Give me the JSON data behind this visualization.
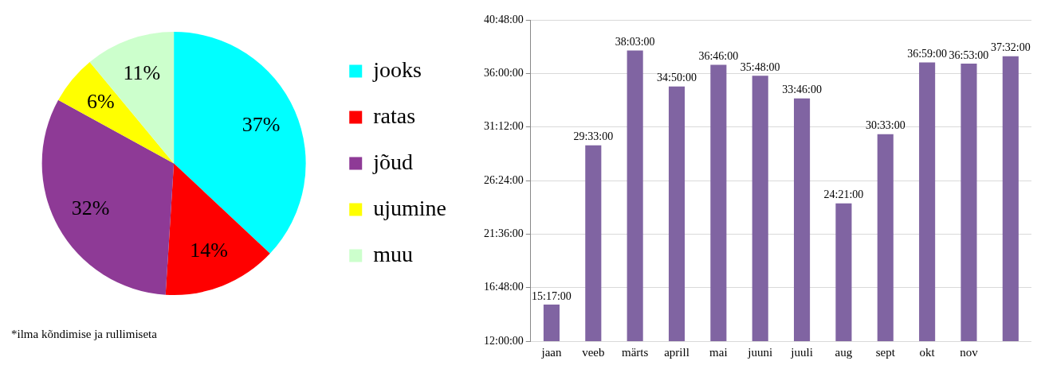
{
  "chart_data": [
    {
      "type": "pie",
      "categories": [
        "jooks",
        "ratas",
        "jõud",
        "ujumine",
        "muu"
      ],
      "values": [
        37,
        14,
        32,
        6,
        11
      ],
      "colors": [
        "#00ffff",
        "#ff0000",
        "#8e3a96",
        "#ffff00",
        "#ccffcc"
      ],
      "value_labels": [
        "37%",
        "14%",
        "32%",
        "6%",
        "11%"
      ],
      "legend": "right",
      "annotations": [
        "*ilma kõndimise ja rullimiseta"
      ]
    },
    {
      "type": "bar",
      "categories": [
        "jaan",
        "veeb",
        "märts",
        "aprill",
        "mai",
        "juuni",
        "juuli",
        "aug",
        "sept",
        "okt",
        "nov",
        null
      ],
      "values": [
        15.2833,
        29.55,
        38.05,
        34.8333,
        36.7667,
        35.8,
        33.7667,
        24.35,
        30.55,
        36.9833,
        36.8833,
        37.5333
      ],
      "value_labels": [
        "15:17:00",
        "29:33:00",
        "38:03:00",
        "34:50:00",
        "36:46:00",
        "35:48:00",
        "33:46:00",
        "24:21:00",
        "30:33:00",
        "36:59:00",
        "36:53:00",
        "37:32:00"
      ],
      "color": "#8064a2",
      "ylim": [
        12,
        40.8
      ],
      "yticks": [
        {
          "value": 12,
          "label": "12:00:00"
        },
        {
          "value": 16.8,
          "label": "16:48:00"
        },
        {
          "value": 21.6,
          "label": "21:36:00"
        },
        {
          "value": 26.4,
          "label": "26:24:00"
        },
        {
          "value": 31.2,
          "label": "31:12:00"
        },
        {
          "value": 36,
          "label": "36:00:00"
        },
        {
          "value": 40.8,
          "label": "40:48:00"
        }
      ],
      "grid": "y"
    }
  ]
}
